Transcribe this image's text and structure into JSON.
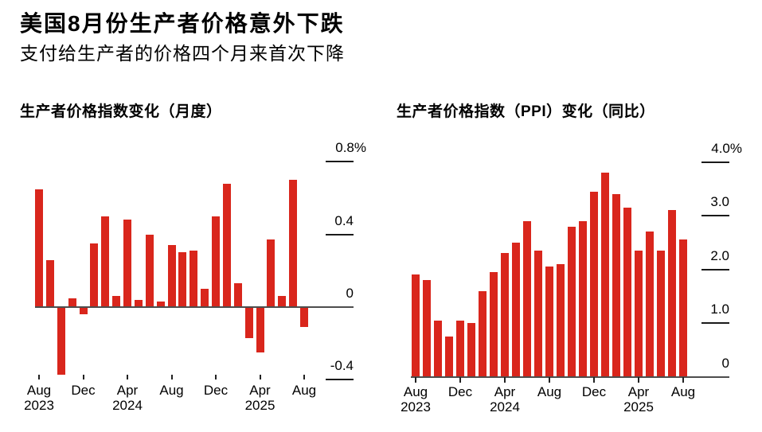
{
  "header": {
    "title": "美国8月份生产者价格意外下跌",
    "subtitle": "支付给生产者的价格四个月来首次下降"
  },
  "colors": {
    "bar_red": "#d9261c",
    "axis_gray": "#4d4d4d",
    "tick_black": "#1a1a1a",
    "text_black": "#000000",
    "background": "#ffffff"
  },
  "chart_data": [
    {
      "type": "bar",
      "title": "生产者价格指数变化（月度）",
      "unit": "%",
      "ylim": [
        -0.45,
        0.85
      ],
      "y_axis_side": "right",
      "grid": false,
      "legend": "none",
      "categories": [
        "Aug 2023",
        "Sep 2023",
        "Oct 2023",
        "Nov 2023",
        "Dec 2023",
        "Jan 2024",
        "Feb 2024",
        "Mar 2024",
        "Apr 2024",
        "May 2024",
        "Jun 2024",
        "Jul 2024",
        "Aug 2024",
        "Sep 2024",
        "Oct 2024",
        "Nov 2024",
        "Dec 2024",
        "Jan 2025",
        "Feb 2025",
        "Mar 2025",
        "Apr 2025",
        "May 2025",
        "Jun 2025",
        "Jul 2025",
        "Aug 2025"
      ],
      "values": [
        0.65,
        0.26,
        -0.37,
        0.05,
        -0.04,
        0.35,
        0.5,
        0.06,
        0.48,
        0.04,
        0.4,
        0.03,
        0.34,
        0.3,
        0.31,
        0.1,
        0.5,
        0.68,
        0.13,
        -0.17,
        -0.25,
        0.37,
        0.06,
        0.7,
        -0.11
      ],
      "y_ticks": [
        {
          "value": 0.8,
          "label": "0.8%"
        },
        {
          "value": 0.4,
          "label": "0.4"
        },
        {
          "value": 0,
          "label": "0"
        },
        {
          "value": -0.4,
          "label": "-0.4"
        }
      ],
      "x_ticks": [
        {
          "index": 0,
          "month": "Aug",
          "year": "2023"
        },
        {
          "index": 4,
          "month": "Dec"
        },
        {
          "index": 8,
          "month": "Apr",
          "year": "2024"
        },
        {
          "index": 12,
          "month": "Aug"
        },
        {
          "index": 16,
          "month": "Dec"
        },
        {
          "index": 20,
          "month": "Apr",
          "year": "2025"
        },
        {
          "index": 24,
          "month": "Aug"
        }
      ]
    },
    {
      "type": "bar",
      "title": "生产者价格指数（PPI）变化（同比）",
      "unit": "%",
      "ylim": [
        0,
        4.2
      ],
      "y_axis_side": "right",
      "grid": false,
      "legend": "none",
      "categories": [
        "Aug 2023",
        "Sep 2023",
        "Oct 2023",
        "Nov 2023",
        "Dec 2023",
        "Jan 2024",
        "Feb 2024",
        "Mar 2024",
        "Apr 2024",
        "May 2024",
        "Jun 2024",
        "Jul 2024",
        "Aug 2024",
        "Sep 2024",
        "Oct 2024",
        "Nov 2024",
        "Dec 2024",
        "Jan 2025",
        "Feb 2025",
        "Mar 2025",
        "Apr 2025",
        "May 2025",
        "Jun 2025",
        "Jul 2025",
        "Aug 2025"
      ],
      "values": [
        1.9,
        1.8,
        1.05,
        0.75,
        1.05,
        1.0,
        1.6,
        1.95,
        2.3,
        2.5,
        2.9,
        2.35,
        2.05,
        2.1,
        2.8,
        2.9,
        3.45,
        3.8,
        3.4,
        3.15,
        2.35,
        2.7,
        2.35,
        3.1,
        2.55
      ],
      "y_ticks": [
        {
          "value": 4.0,
          "label": "4.0%"
        },
        {
          "value": 3.0,
          "label": "3.0"
        },
        {
          "value": 2.0,
          "label": "2.0"
        },
        {
          "value": 1.0,
          "label": "1.0"
        },
        {
          "value": 0,
          "label": "0"
        }
      ],
      "x_ticks": [
        {
          "index": 0,
          "month": "Aug",
          "year": "2023"
        },
        {
          "index": 4,
          "month": "Dec"
        },
        {
          "index": 8,
          "month": "Apr",
          "year": "2024"
        },
        {
          "index": 12,
          "month": "Aug"
        },
        {
          "index": 16,
          "month": "Dec"
        },
        {
          "index": 20,
          "month": "Apr",
          "year": "2025"
        },
        {
          "index": 24,
          "month": "Aug"
        }
      ]
    }
  ]
}
